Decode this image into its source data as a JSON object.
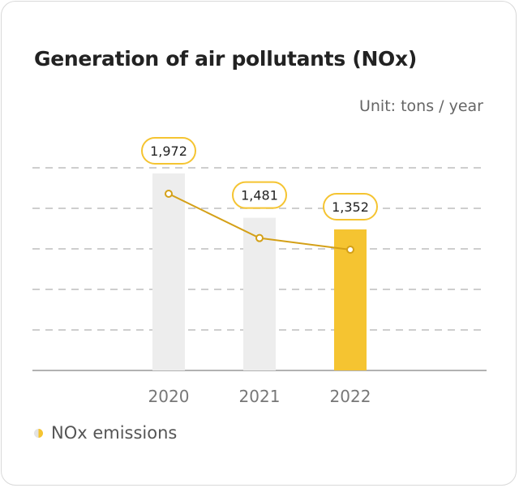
{
  "chart_data": {
    "type": "bar",
    "title": "Generation of air pollutants (NOx)",
    "unit": "Unit: tons / year",
    "categories": [
      "2020",
      "2021",
      "2022"
    ],
    "values": [
      1972,
      1481,
      1352
    ],
    "value_labels": [
      "1,972",
      "1,481",
      "1,352"
    ],
    "series": [
      {
        "name": "NOx emissions",
        "values": [
          1972,
          1481,
          1352
        ]
      }
    ],
    "overlay": "line",
    "grid": true,
    "legend": "bottom-left",
    "colors": {
      "past": "#ededed",
      "current": "#f5c431",
      "line": "#d4a017",
      "label_border": "#f5c431",
      "grid": "#bdbdbd",
      "axis": "#999999"
    }
  }
}
